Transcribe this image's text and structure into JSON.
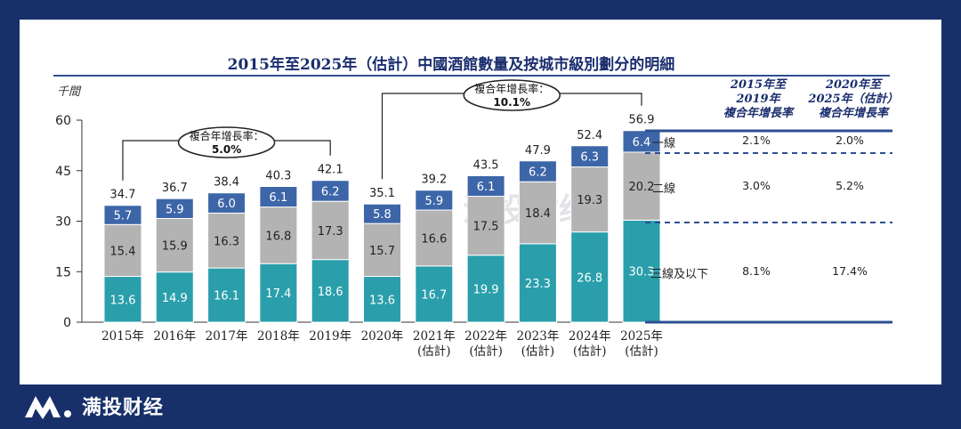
{
  "title": "2015年至2025年（估計）中國酒館數量及按城市級別劃分的明細",
  "unit_label": "千間",
  "watermark": "满投财经",
  "brand": "满投财经",
  "colors": {
    "background": "#17306a",
    "tier1": "#3d66a8",
    "tier2": "#b3b3b3",
    "tier3": "#2a9fab",
    "table_rule": "#2e4f91"
  },
  "chart_data": {
    "type": "bar",
    "stacked": true,
    "categories": [
      "2015年",
      "2016年",
      "2017年",
      "2018年",
      "2019年",
      "2020年",
      "2021年\n(估計)",
      "2022年\n(估計)",
      "2023年\n(估計)",
      "2024年\n(估計)",
      "2025年\n(估計)"
    ],
    "category_lines": [
      [
        "2015年"
      ],
      [
        "2016年"
      ],
      [
        "2017年"
      ],
      [
        "2018年"
      ],
      [
        "2019年"
      ],
      [
        "2020年"
      ],
      [
        "2021年",
        "(估計)"
      ],
      [
        "2022年",
        "(估計)"
      ],
      [
        "2023年",
        "(估計)"
      ],
      [
        "2024年",
        "(估計)"
      ],
      [
        "2025年",
        "(估計)"
      ]
    ],
    "series": [
      {
        "name": "三線及以下",
        "values": [
          13.6,
          14.9,
          16.1,
          17.4,
          18.6,
          13.6,
          16.7,
          19.9,
          23.3,
          26.8,
          30.3
        ]
      },
      {
        "name": "二線",
        "values": [
          15.4,
          15.9,
          16.3,
          16.8,
          17.3,
          15.7,
          16.6,
          17.5,
          18.4,
          19.3,
          20.2
        ]
      },
      {
        "name": "一線",
        "values": [
          5.7,
          5.9,
          6.0,
          6.1,
          6.2,
          5.8,
          5.9,
          6.1,
          6.2,
          6.3,
          6.4
        ]
      }
    ],
    "totals": [
      34.7,
      36.7,
      38.4,
      40.3,
      42.1,
      35.1,
      39.2,
      43.5,
      47.9,
      52.4,
      56.9
    ],
    "ylim": [
      0,
      60
    ],
    "yticks": [
      0,
      15,
      30,
      45,
      60
    ],
    "annotations": [
      {
        "label": "複合年增長率：",
        "value": "5.0%",
        "from": 0,
        "to": 4
      },
      {
        "label": "複合年增長率：",
        "value": "10.1%",
        "from": 5,
        "to": 10
      }
    ]
  },
  "cagr_table": {
    "headers": [
      [
        "2015年至",
        "2019年",
        "複合年增長率"
      ],
      [
        "2020年至",
        "2025年（估計）",
        "複合年增長率"
      ]
    ],
    "rows": [
      {
        "tier": "一線",
        "cagr_2015_2019": "2.1%",
        "cagr_2020_2025": "2.0%"
      },
      {
        "tier": "二線",
        "cagr_2015_2019": "3.0%",
        "cagr_2020_2025": "5.2%"
      },
      {
        "tier": "三線及以下",
        "cagr_2015_2019": "8.1%",
        "cagr_2020_2025": "17.4%"
      }
    ]
  }
}
